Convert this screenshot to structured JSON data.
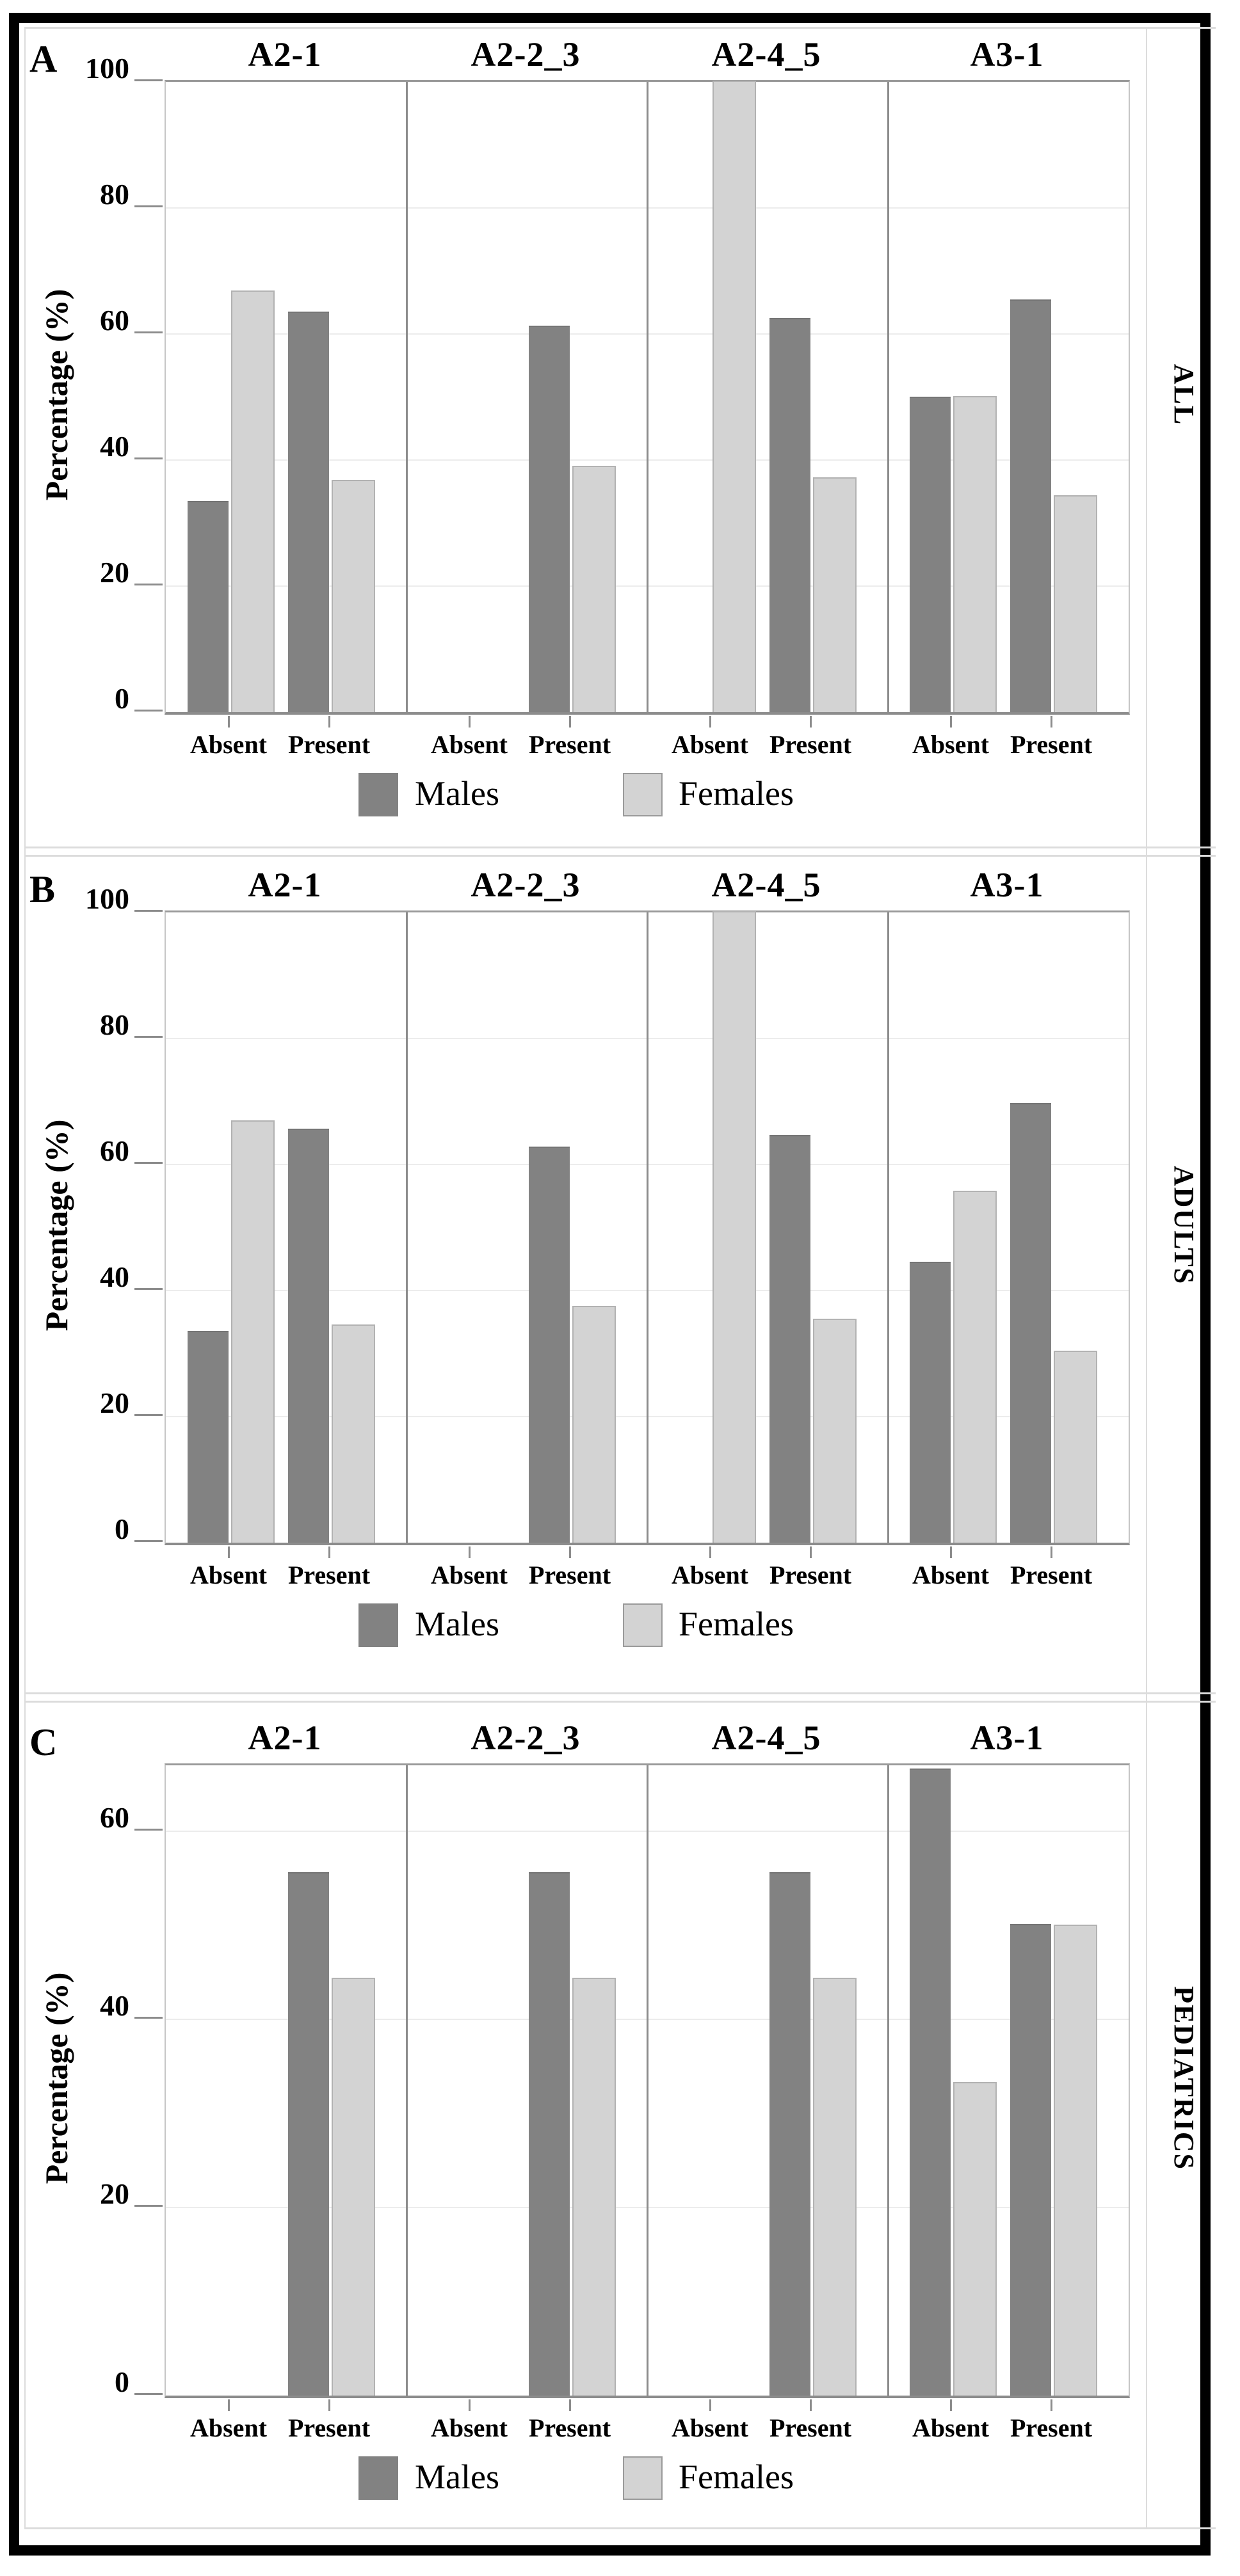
{
  "figure": {
    "background": "#ffffff",
    "frame_color": "#000000",
    "ylabel": "Percentage (%)",
    "legend": [
      "Males",
      "Females"
    ],
    "colors": {
      "Males": "#828282",
      "Females": "#d3d3d3",
      "axis": "#8c8c8c",
      "gridline": "#ececec"
    }
  },
  "chart_data": [
    {
      "panel": "A",
      "side_label": "ALL",
      "type": "bar",
      "ylabel": "Percentage (%)",
      "ylim": [
        0,
        100
      ],
      "yticks": [
        0,
        20,
        40,
        60,
        80,
        100
      ],
      "legend": [
        "Males",
        "Females"
      ],
      "colors": {
        "Males": "#828282",
        "Females": "#d3d3d3"
      },
      "group_labels": [
        "Absent",
        "Present"
      ],
      "subpanels": [
        {
          "title": "A2-1",
          "groups": [
            {
              "label": "Absent",
              "Males": 33.3,
              "Females": 66.7
            },
            {
              "label": "Present",
              "Males": 63.3,
              "Females": 36.7
            }
          ]
        },
        {
          "title": "A2-2_3",
          "groups": [
            {
              "label": "Absent",
              "Males": null,
              "Females": null
            },
            {
              "label": "Present",
              "Males": 61.1,
              "Females": 38.9
            }
          ]
        },
        {
          "title": "A2-4_5",
          "groups": [
            {
              "label": "Absent",
              "Males": null,
              "Females": 100
            },
            {
              "label": "Present",
              "Males": 62.3,
              "Females": 37.1
            }
          ]
        },
        {
          "title": "A3-1",
          "groups": [
            {
              "label": "Absent",
              "Males": 49.8,
              "Females": 49.9
            },
            {
              "label": "Present",
              "Males": 65.3,
              "Females": 34.2
            }
          ]
        }
      ]
    },
    {
      "panel": "B",
      "side_label": "ADULTS",
      "type": "bar",
      "ylabel": "Percentage (%)",
      "ylim": [
        0,
        100
      ],
      "yticks": [
        0,
        20,
        40,
        60,
        80,
        100
      ],
      "legend": [
        "Males",
        "Females"
      ],
      "colors": {
        "Males": "#828282",
        "Females": "#d3d3d3"
      },
      "group_labels": [
        "Absent",
        "Present"
      ],
      "subpanels": [
        {
          "title": "A2-1",
          "groups": [
            {
              "label": "Absent",
              "Males": 33.4,
              "Females": 66.8
            },
            {
              "label": "Present",
              "Males": 65.5,
              "Females": 34.4
            }
          ]
        },
        {
          "title": "A2-2_3",
          "groups": [
            {
              "label": "Absent",
              "Males": null,
              "Females": null
            },
            {
              "label": "Present",
              "Males": 62.6,
              "Females": 37.4
            }
          ]
        },
        {
          "title": "A2-4_5",
          "groups": [
            {
              "label": "Absent",
              "Males": null,
              "Females": 100
            },
            {
              "label": "Present",
              "Males": 64.5,
              "Females": 35.3
            }
          ]
        },
        {
          "title": "A3-1",
          "groups": [
            {
              "label": "Absent",
              "Males": 44.4,
              "Females": 55.6
            },
            {
              "label": "Present",
              "Males": 69.5,
              "Females": 30.3
            }
          ]
        }
      ]
    },
    {
      "panel": "C",
      "side_label": "PEDIATRICS",
      "type": "bar",
      "ylabel": "Percentage (%)",
      "ylim": [
        0,
        67
      ],
      "yticks": [
        0,
        20,
        40,
        60
      ],
      "legend": [
        "Males",
        "Females"
      ],
      "colors": {
        "Males": "#828282",
        "Females": "#d3d3d3"
      },
      "group_labels": [
        "Absent",
        "Present"
      ],
      "subpanels": [
        {
          "title": "A2-1",
          "groups": [
            {
              "label": "Absent",
              "Males": null,
              "Females": null
            },
            {
              "label": "Present",
              "Males": 55.5,
              "Females": 44.3
            }
          ]
        },
        {
          "title": "A2-2_3",
          "groups": [
            {
              "label": "Absent",
              "Males": null,
              "Females": null
            },
            {
              "label": "Present",
              "Males": 55.5,
              "Females": 44.3
            }
          ]
        },
        {
          "title": "A2-4_5",
          "groups": [
            {
              "label": "Absent",
              "Males": null,
              "Females": null
            },
            {
              "label": "Present",
              "Males": 55.5,
              "Females": 44.3
            }
          ]
        },
        {
          "title": "A3-1",
          "groups": [
            {
              "label": "Absent",
              "Males": 66.5,
              "Females": 33.2
            },
            {
              "label": "Present",
              "Males": 50.0,
              "Females": 49.9
            }
          ]
        }
      ]
    }
  ]
}
